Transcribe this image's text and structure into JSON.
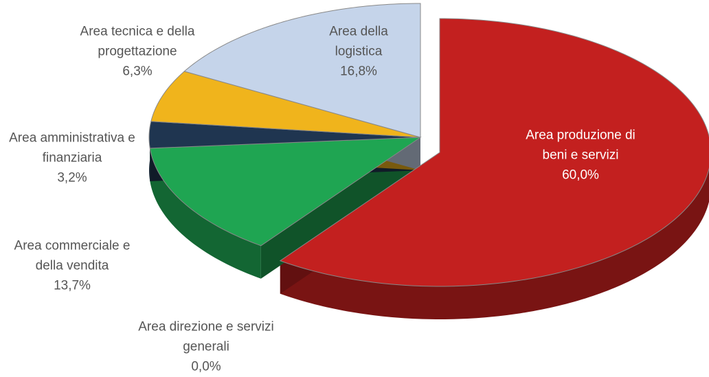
{
  "chart_data": {
    "type": "pie",
    "categories": [
      "Area produzione di beni e servizi",
      "Area direzione e servizi generali",
      "Area commerciale e della vendita",
      "Area amministrativa e finanziaria",
      "Area tecnica e della progettazione",
      "Area della logistica"
    ],
    "values": [
      60.0,
      0.0,
      13.7,
      3.2,
      6.3,
      16.8
    ],
    "value_labels": [
      "60,0%",
      "0,0%",
      "13,7%",
      "3,2%",
      "6,3%",
      "16,8%"
    ],
    "colors": [
      "#c3201f",
      "#9aa0a6",
      "#1fa552",
      "#1f3550",
      "#f0b41c",
      "#c5d4ea"
    ]
  }
}
